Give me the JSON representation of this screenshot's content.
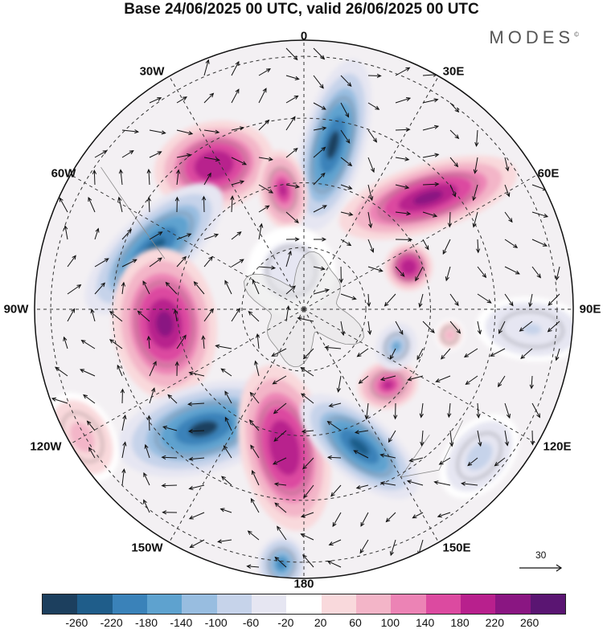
{
  "header": {
    "title": "Base 24/06/2025 00 UTC, valid 26/06/2025 00 UTC",
    "logo": "MODES",
    "logo_mark": "©"
  },
  "map": {
    "projection": "south polar stereographic",
    "longitude_labels": {
      "top": "0",
      "bottom": "180",
      "left": "90W",
      "right": "90E",
      "upper_left_1": "30W",
      "upper_left_2": "60W",
      "upper_right_1": "30E",
      "upper_right_2": "60E",
      "lower_left_1": "120W",
      "lower_left_2": "150W",
      "lower_right_1": "120E",
      "lower_right_2": "150E"
    },
    "reference_vector": "30",
    "shading_field_anomalies": [
      {
        "sign": "negative",
        "peak": -260,
        "region": "near 0–20E"
      },
      {
        "sign": "positive",
        "peak": 220,
        "region": "near 30–50W"
      },
      {
        "sign": "positive",
        "peak": 260,
        "region": "near 45–60E"
      },
      {
        "sign": "negative",
        "peak": -240,
        "region": "near 60–80W"
      },
      {
        "sign": "positive",
        "peak": 260,
        "region": "near 90–100W"
      },
      {
        "sign": "negative",
        "peak": -260,
        "region": "near 130–140W"
      },
      {
        "sign": "positive",
        "peak": 220,
        "region": "near 160W–170E"
      },
      {
        "sign": "negative",
        "peak": -240,
        "region": "near 155E"
      },
      {
        "sign": "positive",
        "peak": 200,
        "region": "near 140E"
      },
      {
        "sign": "negative",
        "peak": -140,
        "region": "near 110E"
      },
      {
        "sign": "positive",
        "peak": 220,
        "region": "near 70E"
      }
    ]
  },
  "colorbar": {
    "ticks": [
      "-260",
      "-220",
      "-180",
      "-140",
      "-100",
      "-60",
      "-20",
      "20",
      "60",
      "100",
      "140",
      "180",
      "220",
      "260"
    ],
    "colors": [
      "#1c3f5e",
      "#1f5d8a",
      "#3a82b9",
      "#5ea2cf",
      "#98bde0",
      "#c6d3ea",
      "#e6e6f2",
      "#ffffff",
      "#f9d9dc",
      "#f3b5c8",
      "#ec83b5",
      "#dc4aa0",
      "#b8208d",
      "#8a1682",
      "#5a1572"
    ]
  }
}
